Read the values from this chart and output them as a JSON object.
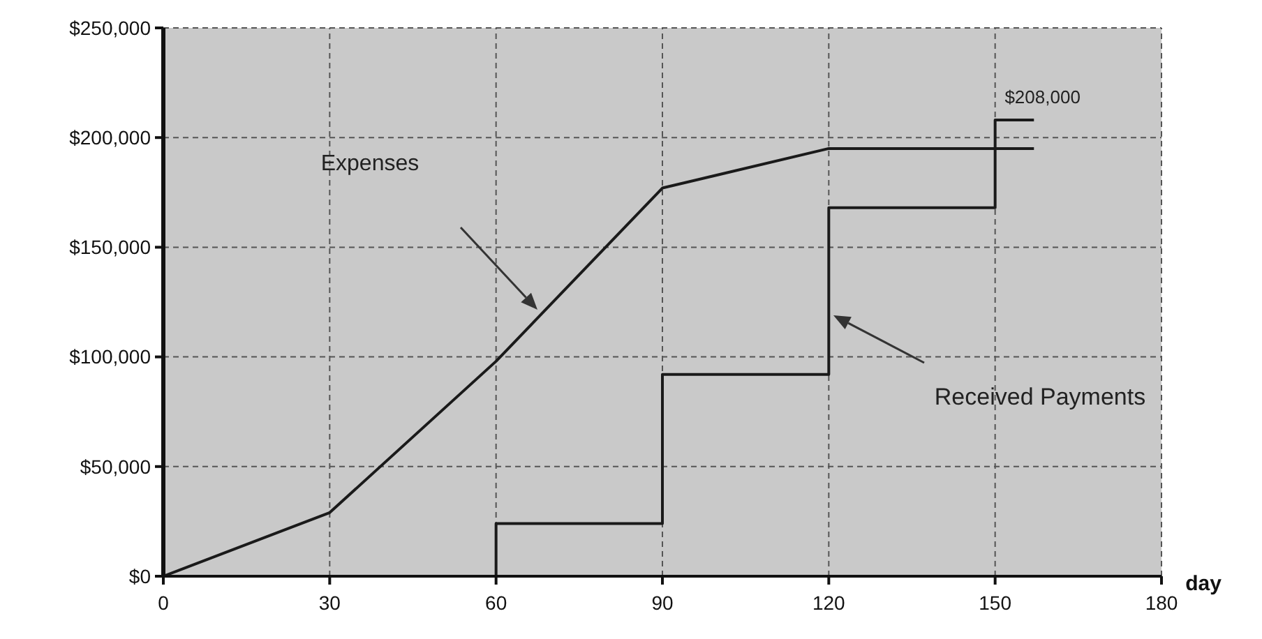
{
  "chart_data": {
    "type": "line",
    "xlabel": "day",
    "xlim": [
      0,
      180
    ],
    "xticks": [
      0,
      30,
      60,
      90,
      120,
      150,
      180
    ],
    "ylim": [
      0,
      250000
    ],
    "yticks": [
      {
        "value": 0,
        "label": "$0"
      },
      {
        "value": 50000,
        "label": "$50,000"
      },
      {
        "value": 100000,
        "label": "$100,000"
      },
      {
        "value": 150000,
        "label": "$150,000"
      },
      {
        "value": 200000,
        "label": "$200,000"
      },
      {
        "value": 250000,
        "label": "$250,000"
      }
    ],
    "grid": true,
    "series": [
      {
        "color": "#1a1a1a",
        "x": [
          0,
          30,
          60,
          90,
          120,
          157
        ],
        "values": [
          0,
          29000,
          98000,
          177000,
          195000,
          195000
        ]
      },
      {
        "type": "step",
        "color": "#1a1a1a",
        "x": [
          0,
          60,
          90,
          120,
          150,
          157
        ],
        "values": [
          0,
          24000,
          92000,
          168000,
          208000,
          208000
        ]
      }
    ],
    "annotations": [
      "Expenses",
      "Received Payments",
      {
        "text": "$208,000",
        "x": 150,
        "y": 208000
      }
    ]
  }
}
